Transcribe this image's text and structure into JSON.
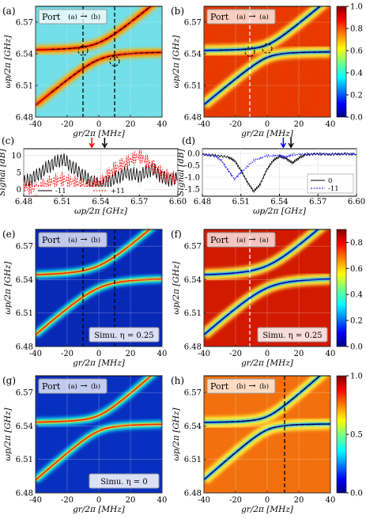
{
  "colorbar": {
    "scheme": "jet",
    "panel_b_ticks": [
      "0.0",
      "0.2",
      "0.4",
      "0.6",
      "0.8",
      "1.0"
    ],
    "panel_f_ticks": [
      "0.0",
      "0.2",
      "0.4",
      "0.6",
      "0.8"
    ],
    "panel_h_ticks": [
      "0.0",
      "0.5",
      "1.0"
    ]
  },
  "axes": {
    "x_label_map": "gr/2π [MHz]",
    "y_label_map": "ωp/2π [GHz]",
    "x_ticks_map": [
      "-40",
      "-20",
      "0",
      "20",
      "40"
    ],
    "y_ticks_map": [
      "6.48",
      "6.51",
      "6.54",
      "6.57"
    ],
    "x_label_line": "ωp/2π [GHz]",
    "y_label_line": "Signal [dB]",
    "x_ticks_line": [
      "6.48",
      "6.51",
      "6.54",
      "6.57",
      "6.60"
    ],
    "c_y_ticks": [
      "0",
      "5",
      "10"
    ],
    "d_y_ticks": [
      "0.0",
      "-0.5",
      "-1.0",
      "-1.5"
    ]
  },
  "panels": {
    "a": {
      "label": "(a)",
      "port": "Port",
      "port_from": "(a)",
      "port_to": "(b)",
      "arrow": "→"
    },
    "b": {
      "label": "(b)",
      "port": "Port",
      "port_from": "(a)",
      "port_to": "(a)",
      "arrow": "→"
    },
    "c": {
      "label": "(c)"
    },
    "d": {
      "label": "(d)"
    },
    "e": {
      "label": "(e)",
      "port": "Port",
      "port_from": "(a)",
      "port_to": "(b)",
      "arrow": "→",
      "simu": "Simu. η = 0.25"
    },
    "f": {
      "label": "(f)",
      "port": "Port",
      "port_from": "(a)",
      "port_to": "(a)",
      "arrow": "→",
      "simu": "Simu. η = 0.25"
    },
    "g": {
      "label": "(g)",
      "port": "Port",
      "port_from": "(a)",
      "port_to": "(b)",
      "arrow": "→",
      "simu": "Simu. η = 0"
    },
    "h": {
      "label": "(h)",
      "port": "Port",
      "port_from": "(b)",
      "port_to": "(b)",
      "arrow": "→"
    }
  },
  "chart_data": [
    {
      "panel": "a",
      "type": "heatmap",
      "xlabel": "gr/2π [MHz]",
      "ylabel": "ωp/2π [GHz]",
      "xlim": [
        -40,
        40
      ],
      "ylim": [
        6.48,
        6.585
      ],
      "vertical_markers": [
        -10,
        10
      ],
      "circle_markers": [
        {
          "x": -10,
          "y": 6.543
        },
        {
          "x": 10,
          "y": 6.533
        }
      ],
      "description_curves": "avoided crossing of a cavity mode near 6.54 GHz with a mode whose frequency rises with gr"
    },
    {
      "panel": "b",
      "type": "heatmap",
      "xlabel": "gr/2π [MHz]",
      "ylabel": "ωp/2π [GHz]",
      "xlim": [
        -40,
        40
      ],
      "ylim": [
        6.48,
        6.585
      ],
      "colorbar_range": [
        0.0,
        1.0
      ],
      "vertical_markers": [
        -11
      ],
      "circle_markers": [
        {
          "x": -11,
          "y": 6.542
        },
        {
          "x": 0,
          "y": 6.545
        }
      ]
    },
    {
      "panel": "c",
      "type": "line",
      "xlabel": "ωp/2π [GHz]",
      "ylabel": "Signal [dB]",
      "xlim": [
        6.48,
        6.6
      ],
      "ylim": [
        -2,
        12
      ],
      "arrows": [
        {
          "x": 6.533,
          "color": "#ff0000"
        },
        {
          "x": 6.543,
          "color": "#000000"
        }
      ],
      "series": [
        {
          "name": "-11",
          "color": "#000000",
          "x": [
            6.48,
            6.49,
            6.5,
            6.51,
            6.52,
            6.53,
            6.54,
            6.55,
            6.56,
            6.57,
            6.58,
            6.59,
            6.6
          ],
          "values": [
            2,
            4,
            7,
            9,
            6,
            3,
            1,
            3,
            5,
            4,
            6,
            3,
            3
          ]
        },
        {
          "name": "+11",
          "color": "#ff0000",
          "x": [
            6.48,
            6.49,
            6.5,
            6.51,
            6.52,
            6.53,
            6.54,
            6.55,
            6.56,
            6.57,
            6.58,
            6.59,
            6.6
          ],
          "values": [
            1,
            0,
            2,
            3,
            2,
            1,
            2,
            6,
            8,
            10,
            7,
            4,
            3
          ]
        }
      ]
    },
    {
      "panel": "d",
      "type": "line",
      "xlabel": "ωp/2π [GHz]",
      "ylabel": "Signal [dB]",
      "xlim": [
        6.48,
        6.6
      ],
      "ylim": [
        -1.8,
        0.2
      ],
      "arrows": [
        {
          "x": 6.543,
          "color": "#0000ff"
        },
        {
          "x": 6.549,
          "color": "#000000"
        }
      ],
      "series": [
        {
          "name": "0",
          "color": "#000000",
          "x": [
            6.48,
            6.49,
            6.5,
            6.505,
            6.51,
            6.515,
            6.52,
            6.525,
            6.53,
            6.535,
            6.54,
            6.545,
            6.55,
            6.555,
            6.56,
            6.57,
            6.58,
            6.59,
            6.6
          ],
          "values": [
            -0.05,
            -0.08,
            -0.15,
            -0.3,
            -0.7,
            -1.2,
            -1.6,
            -1.3,
            -0.7,
            -0.3,
            -0.12,
            -0.2,
            -0.4,
            -0.2,
            -0.05,
            -0.02,
            -0.04,
            -0.02,
            -0.03
          ]
        },
        {
          "name": "-11",
          "color": "#0000ff",
          "x": [
            6.48,
            6.49,
            6.495,
            6.5,
            6.505,
            6.51,
            6.52,
            6.53,
            6.54,
            6.545,
            6.55,
            6.56,
            6.57,
            6.58,
            6.59,
            6.6
          ],
          "values": [
            -0.03,
            -0.1,
            -0.3,
            -0.7,
            -1.1,
            -0.8,
            -0.3,
            -0.1,
            -0.08,
            -0.15,
            -0.05,
            -0.03,
            -0.02,
            -0.03,
            -0.02,
            -0.02
          ]
        }
      ]
    },
    {
      "panel": "e",
      "type": "heatmap",
      "xlabel": "gr/2π [MHz]",
      "ylabel": "ωp/2π [GHz]",
      "xlim": [
        -40,
        40
      ],
      "ylim": [
        6.48,
        6.585
      ],
      "vertical_markers": [
        -10,
        10
      ]
    },
    {
      "panel": "f",
      "type": "heatmap",
      "xlabel": "gr/2π [MHz]",
      "ylabel": "ωp/2π [GHz]",
      "xlim": [
        -40,
        40
      ],
      "ylim": [
        6.48,
        6.585
      ],
      "colorbar_range": [
        0.0,
        0.9
      ],
      "vertical_markers": [
        -11
      ]
    },
    {
      "panel": "g",
      "type": "heatmap",
      "xlabel": "gr/2π [MHz]",
      "ylabel": "ωp/2π [GHz]",
      "xlim": [
        -40,
        40
      ],
      "ylim": [
        6.48,
        6.585
      ]
    },
    {
      "panel": "h",
      "type": "heatmap",
      "xlabel": "gr/2π [MHz]",
      "ylabel": "ωp/2π [GHz]",
      "xlim": [
        -40,
        40
      ],
      "ylim": [
        6.48,
        6.585
      ],
      "colorbar_range": [
        0.0,
        1.0
      ],
      "vertical_markers": [
        11
      ]
    }
  ]
}
